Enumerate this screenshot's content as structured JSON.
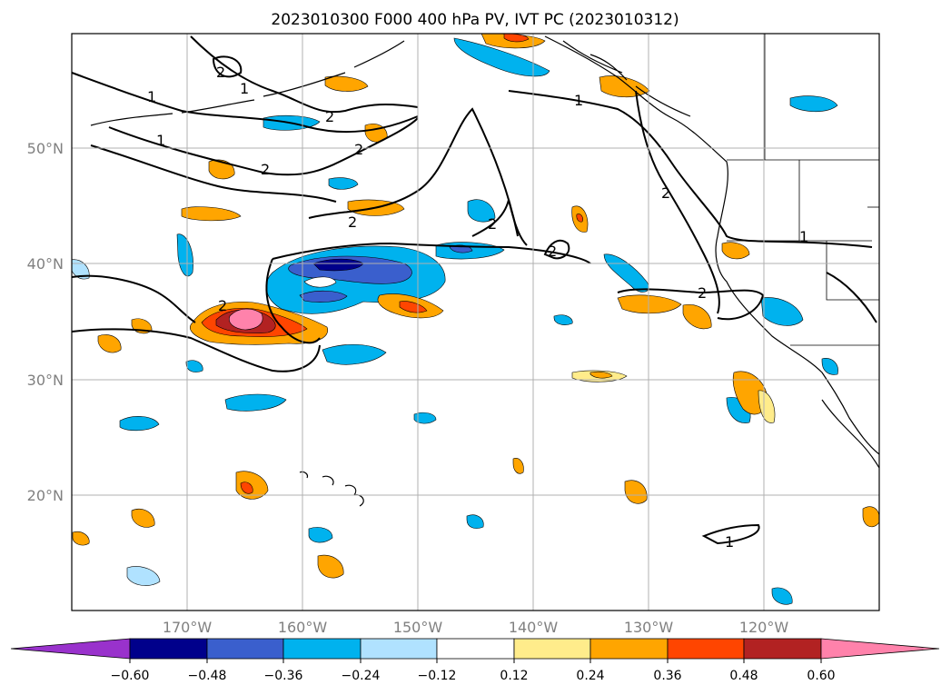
{
  "title": "2023010300 F000 400 hPa PV, IVT PC (2023010312)",
  "lat_labels": [
    "50°N",
    "40°N",
    "30°N",
    "20°N"
  ],
  "lon_labels": [
    "170°W",
    "160°W",
    "150°W",
    "140°W",
    "130°W",
    "120°W"
  ],
  "colorbar": {
    "ticks": [
      "−0.60",
      "−0.48",
      "−0.36",
      "−0.24",
      "−0.12",
      "0.12",
      "0.24",
      "0.36",
      "0.48",
      "0.60"
    ],
    "colors": {
      "under": "#9932cc",
      "neg_060_048": "#00008b",
      "neg_048_036": "#3a5fcd",
      "neg_036_024": "#00b2ee",
      "neg_024_012": "#b0e2ff",
      "neutral": "#ffffff",
      "pos_012_024": "#ffec8b",
      "pos_024_036": "#ffa500",
      "pos_036_048": "#ff4500",
      "pos_048_060": "#b22222",
      "over": "#ff82ab"
    }
  },
  "contour_labels": [
    "1",
    "1",
    "1",
    "1",
    "1",
    "1",
    "2",
    "2",
    "2",
    "2",
    "2",
    "2",
    "2",
    "2",
    "2",
    "2"
  ]
}
